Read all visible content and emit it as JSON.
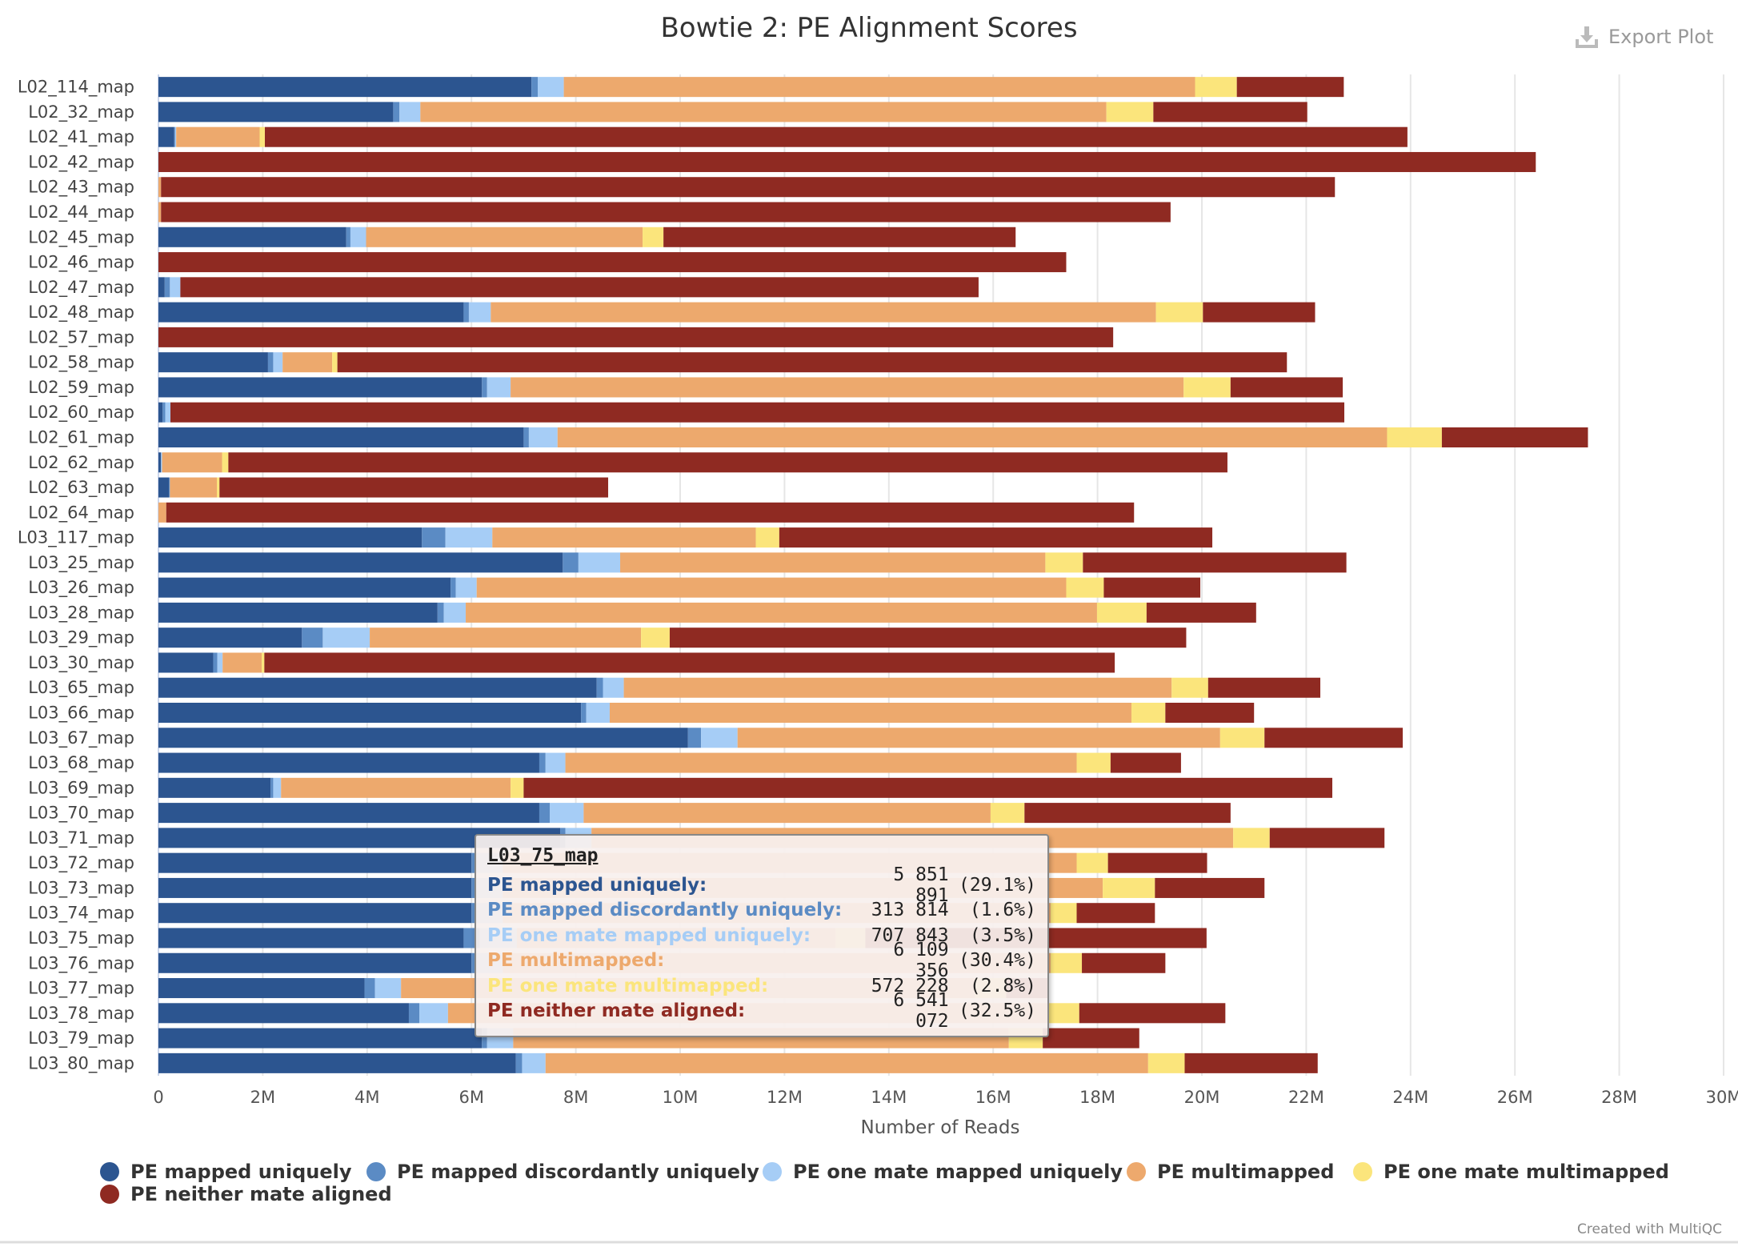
{
  "title": "Bowtie 2: PE Alignment Scores",
  "export_label": "Export Plot",
  "credit": "Created with MultiQC",
  "chart_data": {
    "type": "bar",
    "orientation": "horizontal",
    "stacked": true,
    "title": "Bowtie 2: PE Alignment Scores",
    "xlabel": "Number of Reads",
    "ylabel": "",
    "xlim": [
      0,
      30000000
    ],
    "x_ticks": [
      "0",
      "2M",
      "4M",
      "6M",
      "8M",
      "10M",
      "12M",
      "14M",
      "16M",
      "18M",
      "20M",
      "22M",
      "24M",
      "26M",
      "28M",
      "30M"
    ],
    "grid": true,
    "legend_position": "bottom",
    "categories": [
      "L02_114_map",
      "L02_32_map",
      "L02_41_map",
      "L02_42_map",
      "L02_43_map",
      "L02_44_map",
      "L02_45_map",
      "L02_46_map",
      "L02_47_map",
      "L02_48_map",
      "L02_57_map",
      "L02_58_map",
      "L02_59_map",
      "L02_60_map",
      "L02_61_map",
      "L02_62_map",
      "L02_63_map",
      "L02_64_map",
      "L03_117_map",
      "L03_25_map",
      "L03_26_map",
      "L03_28_map",
      "L03_29_map",
      "L03_30_map",
      "L03_65_map",
      "L03_66_map",
      "L03_67_map",
      "L03_68_map",
      "L03_69_map",
      "L03_70_map",
      "L03_71_map",
      "L03_72_map",
      "L03_73_map",
      "L03_74_map",
      "L03_75_map",
      "L03_76_map",
      "L03_77_map",
      "L03_78_map",
      "L03_79_map",
      "L03_80_map"
    ],
    "series": [
      {
        "name": "PE mapped uniquely",
        "color": "#2c5590",
        "values": [
          7.15,
          4.5,
          0.3,
          0.0,
          0.0,
          0.0,
          3.6,
          0.0,
          0.12,
          5.85,
          0.0,
          2.1,
          6.2,
          0.08,
          7.0,
          0.05,
          0.2,
          0.0,
          5.05,
          7.75,
          5.6,
          5.35,
          2.75,
          1.05,
          8.4,
          8.1,
          10.15,
          7.3,
          2.15,
          7.3,
          7.7,
          6.0,
          6.0,
          6.0,
          5.85,
          6.0,
          3.95,
          4.8,
          6.2,
          6.85
        ]
      },
      {
        "name": "PE mapped discordantly uniquely",
        "color": "#5b8bc4",
        "values": [
          0.12,
          0.12,
          0.02,
          0.0,
          0.0,
          0.0,
          0.08,
          0.0,
          0.1,
          0.1,
          0.0,
          0.1,
          0.1,
          0.05,
          0.1,
          0.0,
          0.02,
          0.0,
          0.45,
          0.3,
          0.1,
          0.12,
          0.4,
          0.08,
          0.12,
          0.1,
          0.25,
          0.12,
          0.05,
          0.2,
          0.1,
          0.1,
          0.1,
          0.1,
          0.31,
          0.1,
          0.2,
          0.2,
          0.1,
          0.12
        ]
      },
      {
        "name": "PE one mate mapped uniquely",
        "color": "#a6cdf6",
        "values": [
          0.5,
          0.4,
          0.02,
          0.0,
          0.0,
          0.0,
          0.3,
          0.0,
          0.2,
          0.42,
          0.0,
          0.18,
          0.45,
          0.1,
          0.55,
          0.02,
          0.0,
          0.0,
          0.9,
          0.8,
          0.4,
          0.42,
          0.9,
          0.1,
          0.4,
          0.45,
          0.7,
          0.38,
          0.15,
          0.65,
          0.5,
          0.5,
          0.5,
          0.5,
          0.71,
          0.5,
          0.5,
          0.55,
          0.5,
          0.45
        ]
      },
      {
        "name": "PE multimapped",
        "color": "#eda96d",
        "values": [
          12.1,
          13.15,
          1.6,
          0.0,
          0.05,
          0.05,
          5.3,
          0.0,
          0.0,
          12.75,
          0.0,
          0.95,
          12.9,
          0.0,
          15.9,
          1.15,
          0.9,
          0.15,
          5.05,
          8.15,
          11.3,
          12.1,
          5.2,
          0.75,
          10.5,
          10.0,
          9.25,
          9.8,
          4.4,
          7.8,
          12.3,
          11.0,
          11.5,
          10.5,
          6.11,
          10.5,
          11.0,
          11.5,
          9.5,
          11.55
        ]
      },
      {
        "name": "PE one mate multimapped",
        "color": "#fbe57c",
        "values": [
          0.8,
          0.9,
          0.1,
          0.0,
          0.0,
          0.0,
          0.4,
          0.0,
          0.0,
          0.9,
          0.0,
          0.1,
          0.9,
          0.0,
          1.05,
          0.12,
          0.05,
          0.0,
          0.45,
          0.72,
          0.72,
          0.95,
          0.55,
          0.05,
          0.7,
          0.65,
          0.85,
          0.65,
          0.25,
          0.65,
          0.7,
          0.6,
          1.0,
          0.5,
          0.57,
          0.6,
          0.6,
          0.6,
          0.65,
          0.7
        ]
      },
      {
        "name": "PE neither mate aligned",
        "color": "#8f2a22",
        "values": [
          2.05,
          2.95,
          21.9,
          26.4,
          22.5,
          19.35,
          6.75,
          17.4,
          15.3,
          2.15,
          18.3,
          18.2,
          2.15,
          22.5,
          2.8,
          19.15,
          7.45,
          18.55,
          8.3,
          5.05,
          1.85,
          2.1,
          9.9,
          16.3,
          2.15,
          1.7,
          2.65,
          1.35,
          15.5,
          3.95,
          2.2,
          1.9,
          2.1,
          1.5,
          6.54,
          1.6,
          0.8,
          2.8,
          1.85,
          2.55
        ]
      }
    ],
    "units": "millions of reads"
  },
  "tooltip": {
    "sample": "L03_75_map",
    "rows": [
      {
        "name": "PE mapped uniquely:",
        "value": "5 851 891",
        "pct": "(29.1%)",
        "color": "#2c5590"
      },
      {
        "name": "PE mapped discordantly uniquely:",
        "value": "313 814",
        "pct": "(1.6%)",
        "color": "#5b8bc4"
      },
      {
        "name": "PE one mate mapped uniquely:",
        "value": "707 843",
        "pct": "(3.5%)",
        "color": "#a6cdf6"
      },
      {
        "name": "PE multimapped:",
        "value": "6 109 356",
        "pct": "(30.4%)",
        "color": "#eda96d"
      },
      {
        "name": "PE one mate multimapped:",
        "value": "572 228",
        "pct": "(2.8%)",
        "color": "#fbe57c"
      },
      {
        "name": "PE neither mate aligned:",
        "value": "6 541 072",
        "pct": "(32.5%)",
        "color": "#8f2a22"
      }
    ]
  }
}
